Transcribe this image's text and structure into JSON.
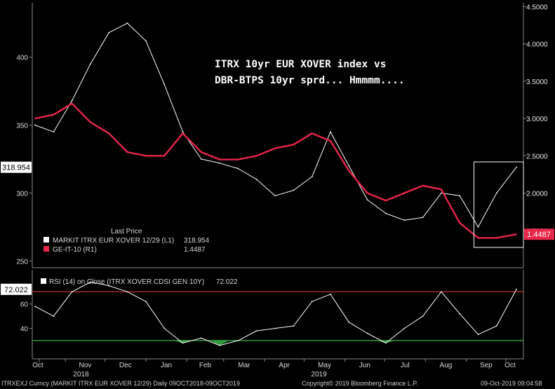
{
  "chart_data": [
    {
      "type": "line",
      "title": "ITRX 10yr EUR XOVER index vs DBR-BTPS 10yr sprd... Hmmmm....",
      "left_axis": {
        "range": [
          245,
          440
        ],
        "ticks": [
          250,
          300,
          350,
          400
        ]
      },
      "right_axis": {
        "range": [
          1.0,
          4.55
        ],
        "ticks": [
          "1.5000",
          "2.0000",
          "2.5000",
          "3.0000",
          "3.5000",
          "4.0000",
          "4.5000"
        ]
      },
      "x_dates": [
        "2018-10-09",
        "2018-10-23",
        "2018-11-06",
        "2018-11-20",
        "2018-12-04",
        "2018-12-18",
        "2019-01-01",
        "2019-01-15",
        "2019-01-29",
        "2019-02-12",
        "2019-02-26",
        "2019-03-12",
        "2019-03-26",
        "2019-04-09",
        "2019-04-23",
        "2019-05-07",
        "2019-05-21",
        "2019-06-04",
        "2019-06-18",
        "2019-07-02",
        "2019-07-16",
        "2019-07-30",
        "2019-08-13",
        "2019-08-27",
        "2019-09-10",
        "2019-09-24",
        "2019-10-09"
      ],
      "x_tick_labels": [
        "Oct",
        "Nov",
        "Dec",
        "Jan",
        "Feb",
        "Mar",
        "Apr",
        "May",
        "Jun",
        "Jul",
        "Aug",
        "Sep",
        "Oct"
      ],
      "x_year_labels": [
        "2018",
        "2019"
      ],
      "legend": {
        "header": "Last Price",
        "position": "bottom-left",
        "entries": [
          {
            "label": "MARKIT ITRX EUR XOVER 12/29  (L1)",
            "value": "318.954",
            "color": "#ffffff"
          },
          {
            "label": "GE-IT-10  (R1)",
            "value": "1.4487",
            "color": "#e8264a"
          }
        ]
      },
      "last_value_left": "318.954",
      "last_value_right": "1.4487",
      "series": [
        {
          "name": "MARKIT ITRX EUR XOVER 12/29",
          "axis": "left",
          "color": "#ffffff",
          "values": [
            350,
            345,
            368,
            395,
            418,
            425,
            412,
            380,
            345,
            325,
            322,
            318,
            310,
            298,
            302,
            312,
            345,
            320,
            295,
            285,
            280,
            282,
            300,
            298,
            275,
            300,
            318.954
          ]
        },
        {
          "name": "GE-IT-10",
          "axis": "right",
          "color": "#e8264a",
          "values": [
            3.0,
            3.05,
            3.2,
            2.95,
            2.8,
            2.55,
            2.5,
            2.5,
            2.8,
            2.55,
            2.45,
            2.45,
            2.5,
            2.6,
            2.65,
            2.8,
            2.7,
            2.3,
            2.0,
            1.9,
            2.0,
            2.1,
            2.05,
            1.6,
            1.4,
            1.4,
            1.4487
          ]
        }
      ],
      "highlight_box": {
        "from": "2019-09-10",
        "to": "2019-10-09"
      }
    },
    {
      "type": "line",
      "legend": {
        "label": "RSI (14)  on Close (ITRX XOVER CDSI GEN 10Y)",
        "value": "72.022"
      },
      "y_range": [
        15,
        88
      ],
      "y_ticks": [
        40,
        60
      ],
      "levels": [
        {
          "value": 70,
          "color": "#d63a3a"
        },
        {
          "value": 30,
          "color": "#3ab54a"
        }
      ],
      "last_value": "72.022",
      "series": [
        {
          "name": "RSI (14)",
          "color": "#ffffff",
          "values": [
            58,
            50,
            70,
            78,
            75,
            70,
            62,
            40,
            28,
            32,
            26,
            30,
            38,
            40,
            42,
            62,
            68,
            45,
            36,
            28,
            40,
            50,
            70,
            52,
            35,
            42,
            72.022
          ]
        }
      ]
    }
  ],
  "footer": {
    "left": "ITRXEXJ Curncy (MARKIT ITRX EUR XOVER 12/29)  Daily 09OCT2018-09OCT2019",
    "center": "Copyright© 2019 Bloomberg Finance L.P.",
    "right": "09-Oct-2019 09:04:58"
  }
}
